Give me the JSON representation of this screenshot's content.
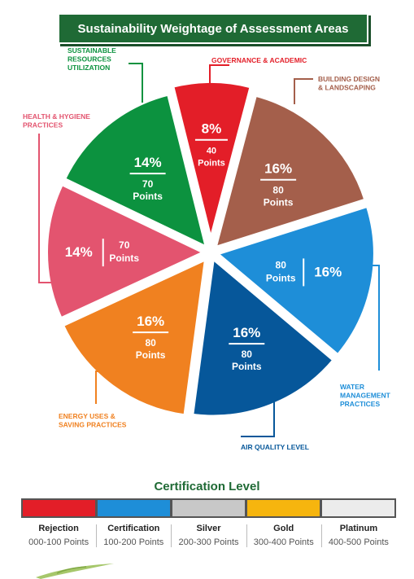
{
  "banner_title": "Sustainability Weightage of Assessment Areas",
  "chart_data": {
    "type": "pie",
    "title": "Sustainability Weightage of Assessment Areas",
    "slices": [
      {
        "key": "governance",
        "label": [
          "GOVERNANCE & ACADEMIC"
        ],
        "percent_text": "8%",
        "points": 40,
        "points_word": "Points",
        "value": 8,
        "color": "#e31e28",
        "label_color": "#e31e28"
      },
      {
        "key": "building",
        "label": [
          "BUILDING DESIGN",
          "& LANDSCAPING"
        ],
        "percent_text": "16%",
        "points": 80,
        "points_word": "Points",
        "value": 16,
        "color": "#a45f4b",
        "label_color": "#a45f4b"
      },
      {
        "key": "water",
        "label": [
          "WATER",
          "MANAGEMENT",
          "PRACTICES"
        ],
        "percent_text": "16%",
        "points": 80,
        "points_word": "Points",
        "value": 16,
        "color": "#1e8ed8",
        "label_color": "#1e8ed8"
      },
      {
        "key": "air",
        "label": [
          "AIR QUALITY LEVEL"
        ],
        "percent_text": "16%",
        "points": 80,
        "points_word": "Points",
        "value": 16,
        "color": "#06579a",
        "label_color": "#06579a"
      },
      {
        "key": "energy",
        "label": [
          "ENERGY USES &",
          "SAVING PRACTICES"
        ],
        "percent_text": "16%",
        "points": 80,
        "points_word": "Points",
        "value": 16,
        "color": "#f08120",
        "label_color": "#f08120"
      },
      {
        "key": "health",
        "label": [
          "HEALTH & HYGIENE",
          "PRACTICES"
        ],
        "percent_text": "14%",
        "points": 70,
        "points_word": "Points",
        "value": 14,
        "color": "#e3546f",
        "label_color": "#e3546f"
      },
      {
        "key": "resources",
        "label": [
          "SUSTAINABLE",
          "RESOURCES",
          "UTILIZATION"
        ],
        "percent_text": "14%",
        "points": 70,
        "points_word": "Points",
        "value": 14,
        "color": "#0c923f",
        "label_color": "#0c923f"
      }
    ]
  },
  "certification": {
    "title": "Certification Level",
    "levels": [
      {
        "name": "Rejection",
        "range": "000-100 Points",
        "color": "#e31e28"
      },
      {
        "name": "Certification",
        "range": "100-200 Points",
        "color": "#1e8ed8"
      },
      {
        "name": "Silver",
        "range": "200-300 Points",
        "color": "#c8c8c8"
      },
      {
        "name": "Gold",
        "range": "300-400 Points",
        "color": "#f6b50e"
      },
      {
        "name": "Platinum",
        "range": "400-500 Points",
        "color": "#ececec"
      }
    ]
  }
}
